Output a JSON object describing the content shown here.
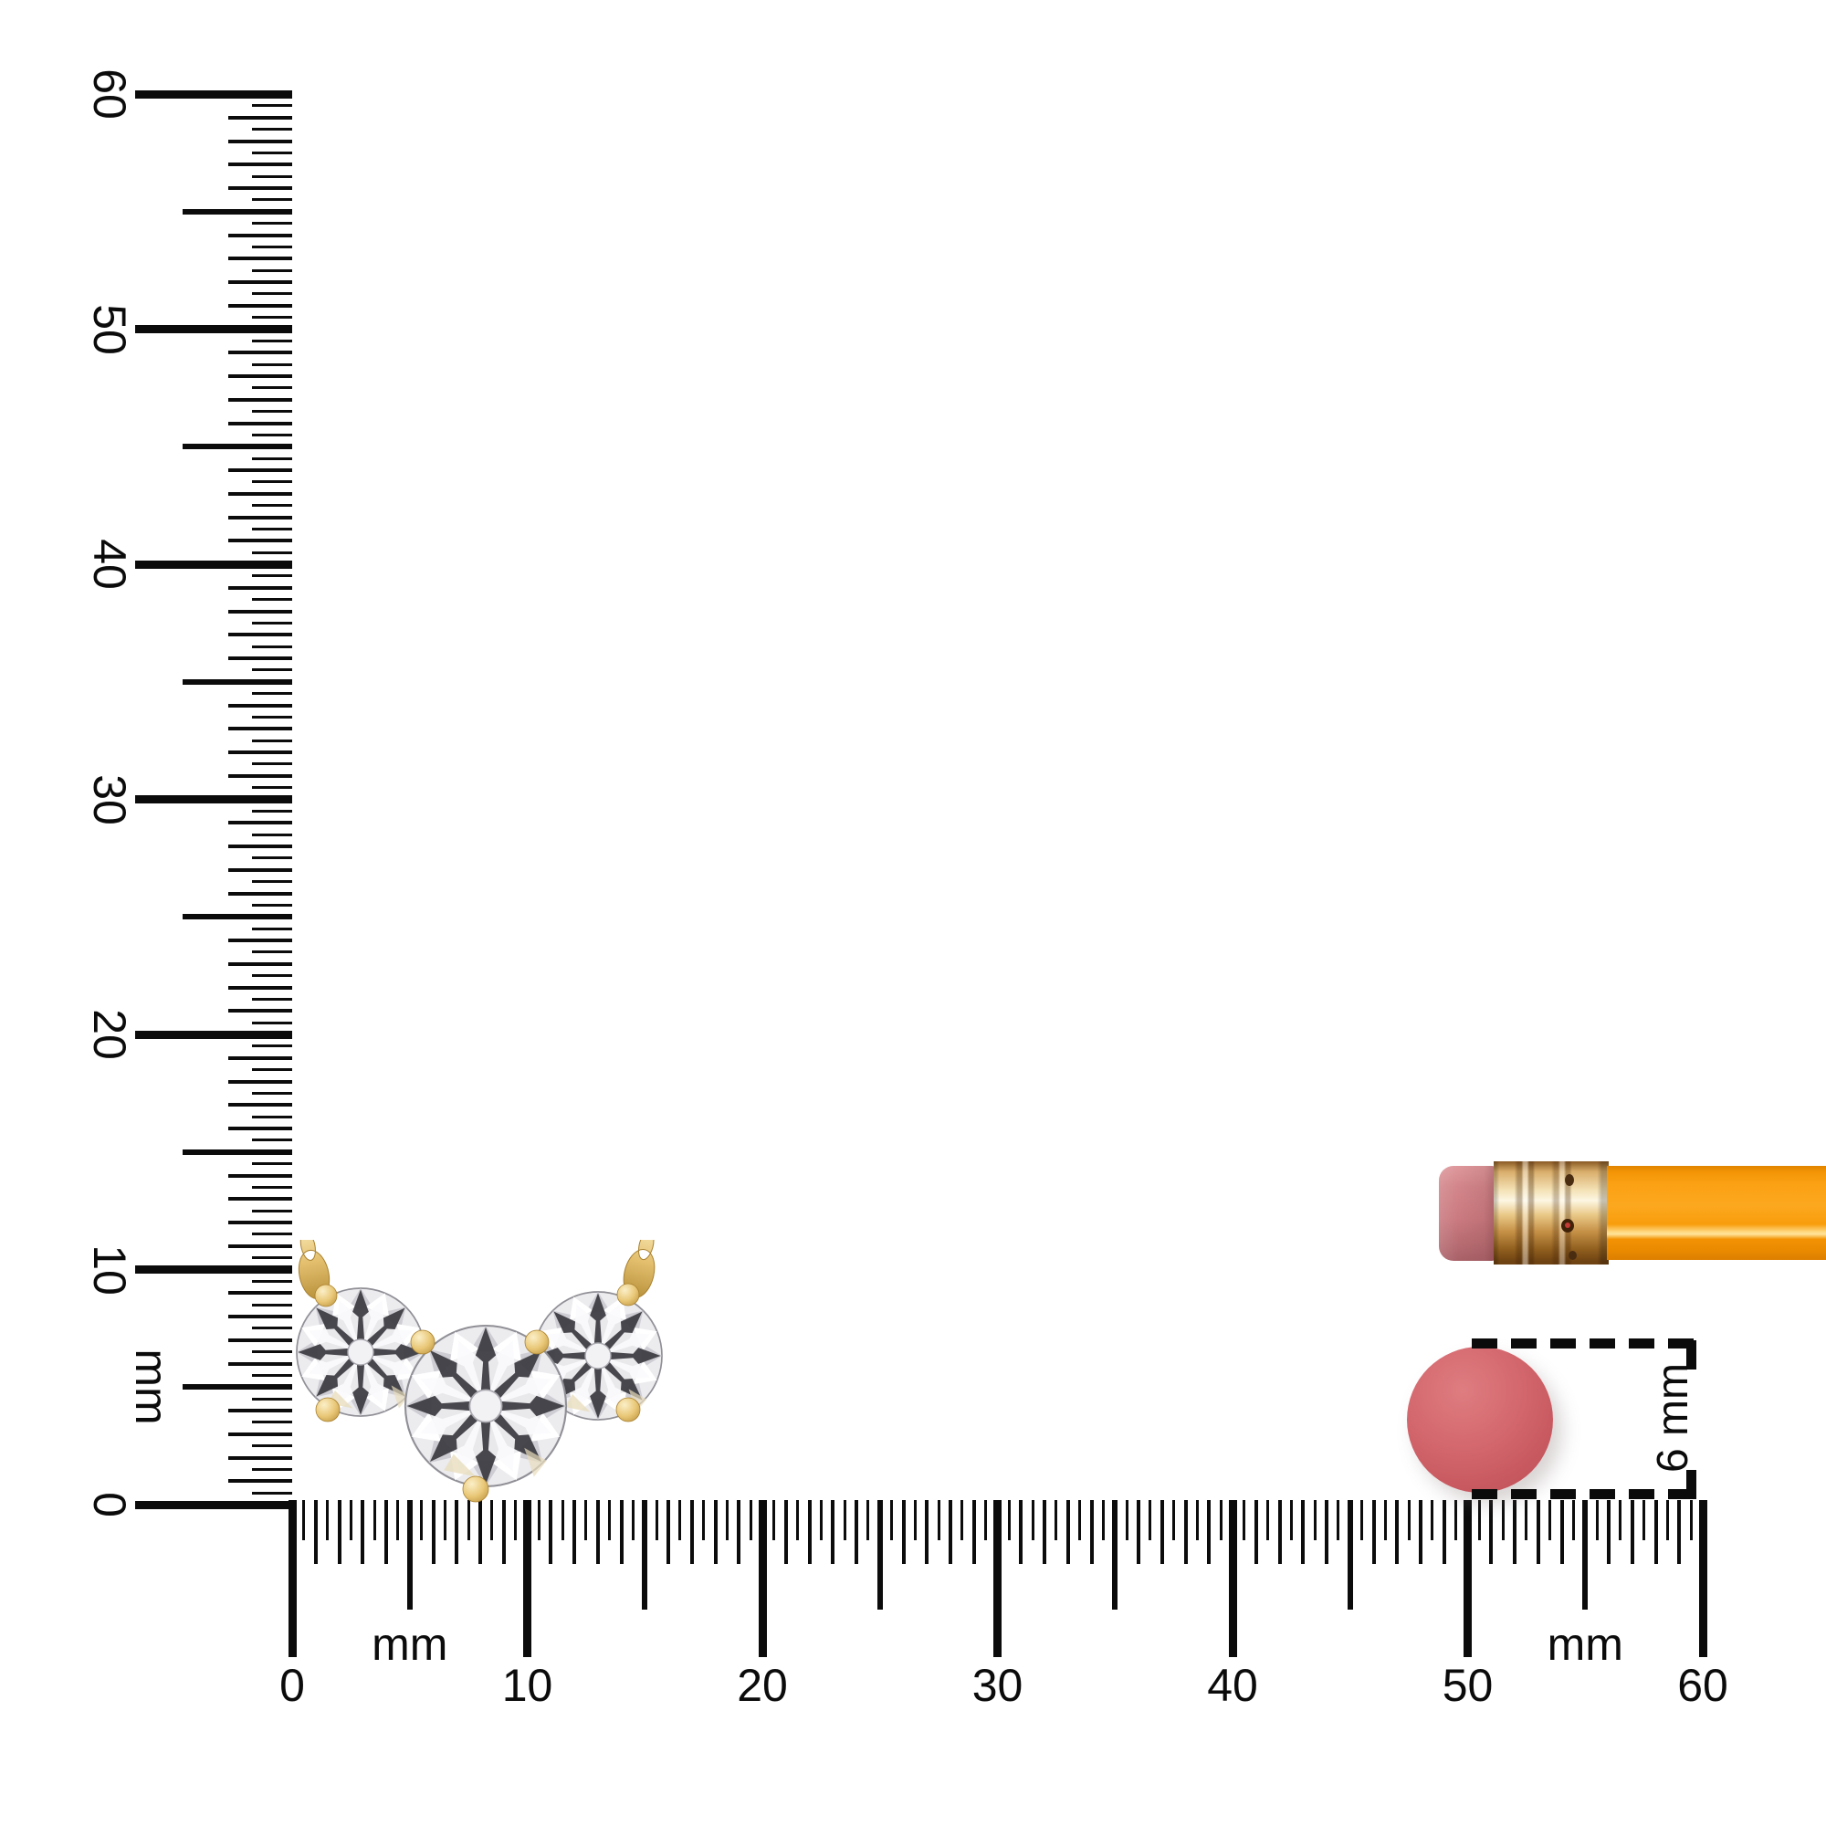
{
  "scene": {
    "description": "Three-stone diamond pendant shown to scale with millimeter rulers, a pencil and a 6 mm eraser disc for size comparison",
    "background_color": "#ffffff"
  },
  "colors": {
    "ink": "#0b0b0b",
    "gold": "#E3BF6E",
    "gold-dark": "#A9812F",
    "diamond-light": "#ECECEF",
    "diamond-dark": "#3D3D43",
    "pencil-orange": "#F9A013",
    "pencil-ferrule": "#D9AE6B",
    "pencil-eraser": "#CC7F85",
    "disc-coral": "#CE5F66"
  },
  "vertical_ruler": {
    "unit": "mm",
    "min_mm": 0,
    "max_mm": 60,
    "tick_interval_mm": 0.5,
    "numbered_ticks": [
      0,
      10,
      20,
      30,
      40,
      50,
      60
    ],
    "unit_label_positions_mm": [
      5
    ]
  },
  "horizontal_ruler": {
    "unit": "mm",
    "min_mm": 0,
    "max_mm": 60,
    "tick_interval_mm": 0.5,
    "numbered_ticks": [
      0,
      10,
      20,
      30,
      40,
      50,
      60
    ],
    "unit_label_positions_mm": [
      5,
      55
    ]
  },
  "pendant": {
    "type": "three-stone round brilliant diamond pendant with two gold bails",
    "stones": [
      {
        "position": "left",
        "diameter_mm": 5.4
      },
      {
        "position": "center",
        "diameter_mm": 6.8
      },
      {
        "position": "right",
        "diameter_mm": 5.4
      }
    ]
  },
  "pencil": {
    "parts": [
      "eraser",
      "ferrule",
      "body"
    ]
  },
  "eraser_disc": {
    "diameter_mm": 6
  },
  "annotation": {
    "text": "6 mm"
  }
}
